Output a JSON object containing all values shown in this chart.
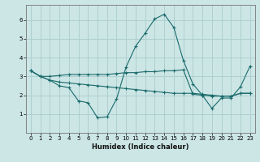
{
  "title": "",
  "xlabel": "Humidex (Indice chaleur)",
  "background_color": "#cce5e5",
  "grid_color": "#aacccc",
  "line_color": "#1a6b6b",
  "x": [
    0,
    1,
    2,
    3,
    4,
    5,
    6,
    7,
    8,
    9,
    10,
    11,
    12,
    13,
    14,
    15,
    16,
    17,
    18,
    19,
    20,
    21,
    22,
    23
  ],
  "line1": [
    3.3,
    3.0,
    2.8,
    2.5,
    2.4,
    1.7,
    1.6,
    0.8,
    0.85,
    1.8,
    3.5,
    4.6,
    5.3,
    6.05,
    6.3,
    5.6,
    3.85,
    2.6,
    2.0,
    1.3,
    1.85,
    1.85,
    2.45,
    3.55
  ],
  "line2": [
    3.3,
    3.0,
    3.0,
    3.05,
    3.1,
    3.1,
    3.1,
    3.1,
    3.1,
    3.15,
    3.2,
    3.2,
    3.25,
    3.25,
    3.3,
    3.3,
    3.35,
    2.05,
    2.0,
    1.95,
    1.95,
    1.95,
    2.1,
    2.1
  ],
  "line3": [
    3.3,
    3.0,
    2.8,
    2.7,
    2.65,
    2.6,
    2.55,
    2.5,
    2.45,
    2.4,
    2.35,
    2.3,
    2.25,
    2.2,
    2.15,
    2.1,
    2.1,
    2.1,
    2.05,
    2.0,
    1.95,
    1.95,
    2.1,
    2.1
  ],
  "ylim": [
    0,
    6.8
  ],
  "xlim": [
    -0.5,
    23.5
  ],
  "yticks": [
    1,
    2,
    3,
    4,
    5,
    6
  ],
  "xticks": [
    0,
    1,
    2,
    3,
    4,
    5,
    6,
    7,
    8,
    9,
    10,
    11,
    12,
    13,
    14,
    15,
    16,
    17,
    18,
    19,
    20,
    21,
    22,
    23
  ],
  "tick_fontsize": 5.0,
  "xlabel_fontsize": 6.0,
  "linewidth": 0.8,
  "markersize": 2.5
}
